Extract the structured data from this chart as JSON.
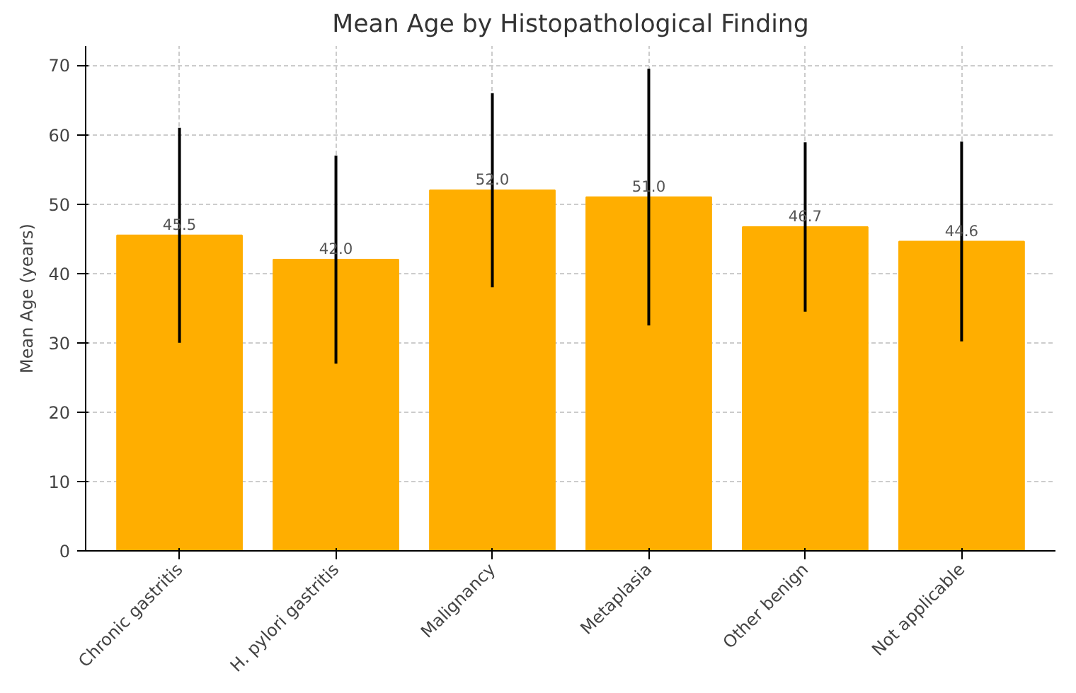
{
  "chart_data": {
    "type": "bar",
    "title": "Mean Age by Histopathological Finding",
    "ylabel": "Mean Age (years)",
    "categories": [
      "Chronic gastritis",
      "H. pylori gastritis",
      "Malignancy",
      "Metaplasia",
      "Other benign",
      "Not applicable"
    ],
    "values": [
      45.5,
      42.0,
      52.0,
      51.0,
      46.7,
      44.6
    ],
    "errors": [
      15.5,
      15,
      14,
      18.5,
      12.2,
      14.4
    ],
    "color": "#ffae00",
    "ylim": [
      0,
      72.8
    ],
    "yticks": [
      0,
      10,
      20,
      30,
      40,
      50,
      60,
      70
    ],
    "value_labels": [
      "45.5",
      "42.0",
      "52.0",
      "51.0",
      "46.7",
      "44.6"
    ],
    "grid": true
  }
}
